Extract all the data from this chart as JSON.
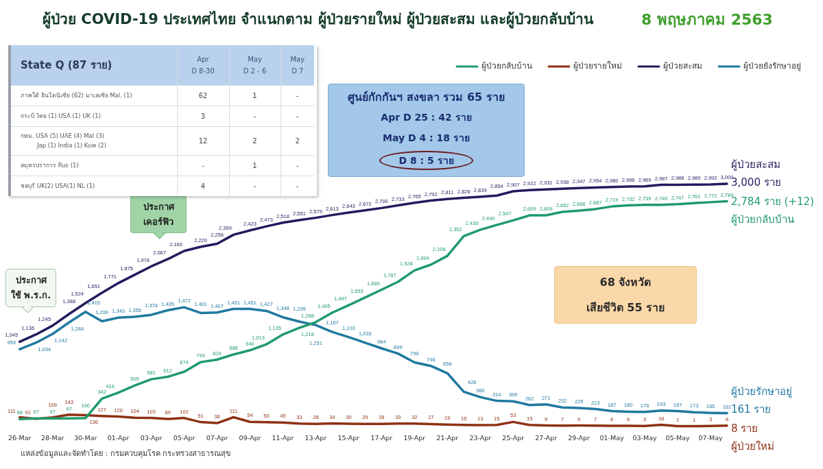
{
  "chart_data": [
    {
      "type": "line",
      "title": "ผู้ป่วย COVID-19 ประเทศไทย จำแนกตาม ผู้ป่วยรายใหม่ ผู้ป่วยสะสม และผู้ป่วยกลับบ้าน",
      "subtitle": "8 พฤษภาคม 2563",
      "categories": [
        "26-Mar",
        null,
        "28-Mar",
        null,
        "30-Mar",
        null,
        "01-Apr",
        null,
        "03-Apr",
        null,
        "05-Apr",
        null,
        "07-Apr",
        null,
        "09-Apr",
        null,
        "11-Apr",
        null,
        "13-Apr",
        null,
        "15-Apr",
        null,
        "17-Apr",
        null,
        "19-Apr",
        null,
        "21-Apr",
        null,
        "23-Apr",
        null,
        "25-Apr",
        null,
        "27-Apr",
        null,
        "29-Apr",
        null,
        "01-May",
        null,
        "03-May",
        null,
        "05-May",
        null,
        "07-May",
        null
      ],
      "series": [
        {
          "name": "ผู้ป่วยกลับบ้าน",
          "color": "#1f9a6c",
          "values": [
            88,
            97,
            97,
            97,
            100,
            342,
            416,
            505,
            581,
            612,
            674,
            793,
            824,
            888,
            940,
            1013,
            1135,
            1218,
            1288,
            1405,
            1497,
            1593,
            1689,
            1787,
            1928,
            1999,
            2108,
            2352,
            2430,
            2490,
            2547,
            2609,
            2609,
            2652,
            2668,
            2687,
            2719,
            2732,
            2739,
            2740,
            2747,
            2761,
            2772,
            2784
          ],
          "value_labels": [
            "88",
            "97",
            "97",
            "97",
            "100",
            "342",
            "416",
            "505",
            "581",
            "612",
            "674",
            "793",
            "824",
            "888",
            "940",
            "1,013",
            "1,135",
            "1,218",
            "1,288",
            "1,405",
            "1,497",
            "1,593",
            "1,689",
            "1,787",
            "1,928",
            "1,999",
            "2,108",
            "2,352",
            "2,430",
            "2,490",
            "2,547",
            "2,609",
            "2,609",
            "2,652",
            "2,668",
            "2,687",
            "2,719",
            "2,732",
            "2,739",
            "2,740",
            "2,747",
            "2,761",
            "2,772",
            "2,784"
          ]
        },
        {
          "name": "ผู้ป่วยรายใหม่",
          "color": "#8e3115",
          "values": [
            111,
            91,
            109,
            143,
            136,
            127,
            120,
            104,
            103,
            89,
            102,
            51,
            38,
            111,
            54,
            50,
            45,
            33,
            28,
            34,
            30,
            29,
            28,
            33,
            32,
            27,
            19,
            15,
            13,
            15,
            53,
            15,
            9,
            7,
            9,
            7,
            6,
            6,
            3,
            18,
            1,
            1,
            3,
            8
          ],
          "value_labels": [
            "111",
            "91",
            "109",
            "143",
            "136",
            "127",
            "120",
            "104",
            "103",
            "89",
            "102",
            "51",
            "38",
            "111",
            "54",
            "50",
            "45",
            "33",
            "28",
            "34",
            "30",
            "29",
            "28",
            "33",
            "32",
            "27",
            "19",
            "15",
            "13",
            "15",
            "53",
            "15",
            "9",
            "7",
            "9",
            "7",
            "6",
            "6",
            "3",
            "18",
            "1",
            "1",
            "3",
            "8"
          ]
        },
        {
          "name": "ผู้ป่วยสะสม",
          "color": "#211c5e",
          "values": [
            1045,
            1136,
            1245,
            1388,
            1524,
            1651,
            1771,
            1875,
            1978,
            2067,
            2169,
            2220,
            2258,
            2369,
            2423,
            2473,
            2518,
            2551,
            2579,
            2613,
            2643,
            2672,
            2700,
            2733,
            2765,
            2792,
            2811,
            2826,
            2839,
            2854,
            2907,
            2922,
            2931,
            2938,
            2947,
            2954,
            2960,
            2966,
            2969,
            2987,
            2988,
            2989,
            2992,
            3000
          ],
          "value_labels": [
            "1,045",
            "1,136",
            "1,245",
            "1,388",
            "1,524",
            "1,651",
            "1,771",
            "1,875",
            "1,978",
            "2,067",
            "2,169",
            "2,220",
            "2,258",
            "2,369",
            "2,423",
            "2,473",
            "2,518",
            "2,551",
            "2,579",
            "2,613",
            "2,643",
            "2,672",
            "2,700",
            "2,733",
            "2,765",
            "2,792",
            "2,811",
            "2,826",
            "2,839",
            "2,854",
            "2,907",
            "2,922",
            "2,931",
            "2,938",
            "2,947",
            "2,954",
            "2,960",
            "2,966",
            "2,969",
            "2,987",
            "2,988",
            "2,989",
            "2,992",
            "3,000"
          ]
        },
        {
          "name": "ผู้ป่วยยังรักษาอยู่",
          "color": "#1f79a0",
          "values": [
            953,
            1034,
            1142,
            1284,
            1415,
            1299,
            1343,
            1355,
            1378,
            1435,
            1472,
            1401,
            1407,
            1451,
            1451,
            1427,
            1348,
            1295,
            1251,
            1167,
            1103,
            1033,
            964,
            899,
            790,
            746,
            656,
            426,
            360,
            314,
            309,
            262,
            271,
            232,
            225,
            213,
            187,
            180,
            176,
            193,
            187,
            173,
            165,
            161
          ],
          "value_labels": [
            "953",
            "1,034",
            "1,142",
            "1,284",
            "1,415",
            "1,299",
            "1,343",
            "1,355",
            "1,378",
            "1,435",
            "1,472",
            "1,401",
            "1,407",
            "1,451",
            "1,451",
            "1,427",
            "1,348",
            "1,295",
            "1,251",
            "1,167",
            "1,103",
            "1,033",
            "964",
            "899",
            "790",
            "746",
            "656",
            "426",
            "360",
            "314",
            "309",
            "262",
            "271",
            "232",
            "225",
            "213",
            "187",
            "180",
            "176",
            "193",
            "187",
            "173",
            "165",
            "161"
          ]
        }
      ],
      "tick_labels": "x",
      "legend": "top right",
      "annotations": [
        "ประกาศ\nใช้ พ.ร.ก.",
        "ประกาศ\nเคอร์ฟิว",
        "ศูนย์กักกันฯ สงขลา รวม 65 ราย\nApr D 25 : 42 ราย\nMay D 4 : 18 ราย\nD 8 : 5 ราย",
        "68 จังหวัด\nเสียชีวิต 55 ราย",
        "ผู้ป่วยสะสม\n3,000 ราย",
        "2,784 ราย (+12)\nผู้ป่วยกลับบ้าน",
        "ผู้ป่วยรักษาอยู่\n161 ราย",
        "8 ราย\nผู้ป่วยใหม่",
        "แหล่งข้อมูลและจัดทำโดย : กรมควบคุมโรค กระทรวงสาธารณสุข"
      ]
    },
    {
      "type": "other",
      "title": "State Q (87 ราย)",
      "categories": [
        "Apr\nD 8-30",
        "May\nD 2 - 6",
        "May\nD 7"
      ],
      "y_categories": [
        "ภาคใต้ อินโดนีเซีย (62) มาเลเซีย Mal. (1)",
        "กระบี่ ไทย (1) USA (1) UK (1)",
        "กทม. USA (5) UAE (4) Mal (3)\nJap (1) India (1) Kuw (2)",
        "สมุทรปราการ Rus (1)",
        "ชลบุรี UK(2) USA(1) NL (1)"
      ],
      "cell_labels": [
        [
          "62",
          "1",
          "-"
        ],
        [
          "3",
          "-",
          "-"
        ],
        [
          "12",
          "2",
          "2"
        ],
        [
          "-",
          "1",
          "-"
        ],
        [
          "4",
          "-",
          "-"
        ]
      ]
    }
  ]
}
